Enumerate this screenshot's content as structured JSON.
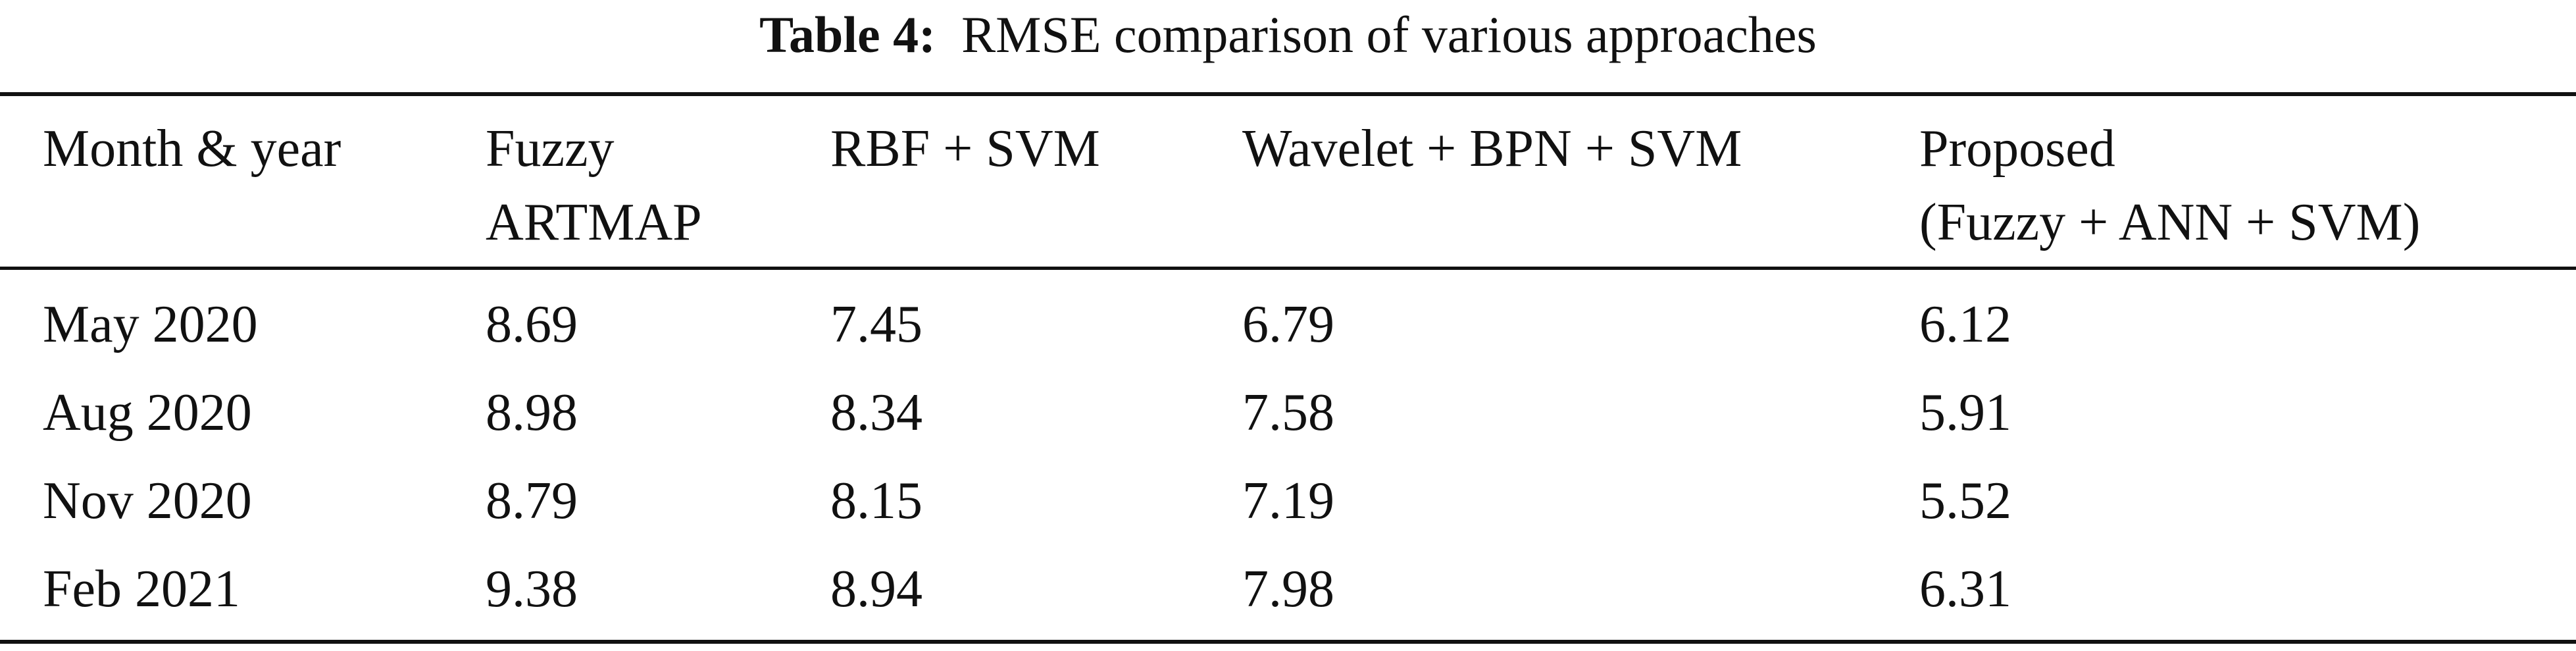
{
  "caption": {
    "label": "Table 4:",
    "text": "RMSE comparison of various approaches"
  },
  "table": {
    "headers": [
      [
        "Month & year"
      ],
      [
        "Fuzzy",
        "ARTMAP"
      ],
      [
        "RBF + SVM"
      ],
      [
        "Wavelet + BPN + SVM"
      ],
      [
        "Proposed",
        "(Fuzzy + ANN + SVM)"
      ]
    ],
    "rows": [
      [
        "May 2020",
        "8.69",
        "7.45",
        "6.79",
        "6.12"
      ],
      [
        "Aug 2020",
        "8.98",
        "8.34",
        "7.58",
        "5.91"
      ],
      [
        "Nov 2020",
        "8.79",
        "8.15",
        "7.19",
        "5.52"
      ],
      [
        "Feb 2021",
        "9.38",
        "8.94",
        "7.98",
        "6.31"
      ]
    ]
  }
}
